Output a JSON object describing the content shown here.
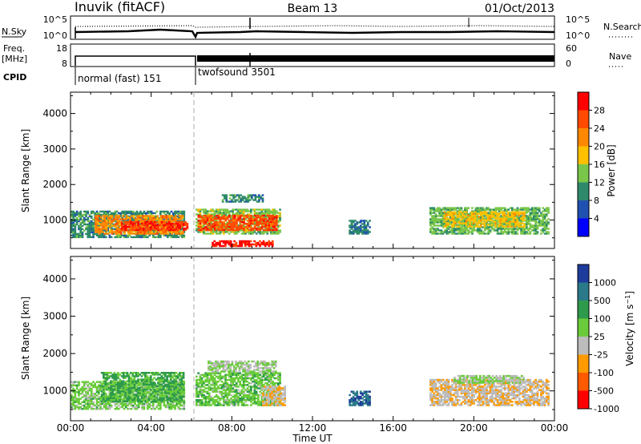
{
  "header": {
    "station": "Inuvik (fitACF)",
    "beam": "Beam 13",
    "date": "01/Oct/2013"
  },
  "status_panel": {
    "nsky_label": "N.Sky",
    "nsky_ticks": [
      "10^5",
      "10^0"
    ],
    "nsearch_label": "N.Search",
    "nsearch_ticks": [
      "10^5",
      "10^0"
    ],
    "freq_label_1": "Freq.",
    "freq_label_2": "[MHz]",
    "freq_ticks": [
      "18",
      "8"
    ],
    "nave_label": "Nave",
    "nave_ticks": [
      "60",
      "0"
    ],
    "cpid_label": "CPID",
    "modes": [
      {
        "name": "normal (fast) 151",
        "start_h": 0.0,
        "end_h": 6.0
      },
      {
        "name": "twofsound 3501",
        "start_h": 6.0,
        "end_h": 24.0
      }
    ]
  },
  "chart_data": [
    {
      "type": "heatmap",
      "title": "",
      "parameter": "Power",
      "colorbar_label": "Power [dB]",
      "colorbar_ticks": [
        "28",
        "24",
        "20",
        "16",
        "12",
        "8",
        "4"
      ],
      "colorbar_colors": [
        "#ff0000",
        "#ff4a00",
        "#ff8800",
        "#ffc000",
        "#7ac64a",
        "#2e8a6a",
        "#2050b0",
        "#0000ff"
      ],
      "colorbar_min": 0,
      "colorbar_max": 32,
      "ylabel": "Slant Range [km]",
      "yticks": [
        1000,
        2000,
        3000,
        4000
      ],
      "ylim": [
        200,
        4600
      ],
      "xlim": [
        0,
        24
      ],
      "regions": [
        {
          "x0": 0.0,
          "x1": 5.6,
          "y0": 500,
          "y1": 1250,
          "value": 10
        },
        {
          "x0": 1.2,
          "x1": 5.6,
          "y0": 600,
          "y1": 1100,
          "value": 22
        },
        {
          "x0": 2.5,
          "x1": 5.8,
          "y0": 700,
          "y1": 950,
          "value": 28
        },
        {
          "x0": 6.2,
          "x1": 10.4,
          "y0": 600,
          "y1": 1300,
          "value": 14
        },
        {
          "x0": 6.3,
          "x1": 10.2,
          "y0": 700,
          "y1": 1150,
          "value": 26
        },
        {
          "x0": 7.0,
          "x1": 10.0,
          "y0": 250,
          "y1": 420,
          "value": 29
        },
        {
          "x0": 7.5,
          "x1": 9.5,
          "y0": 1500,
          "y1": 1700,
          "value": 10
        },
        {
          "x0": 13.8,
          "x1": 14.8,
          "y0": 600,
          "y1": 1000,
          "value": 9
        },
        {
          "x0": 17.8,
          "x1": 23.7,
          "y0": 600,
          "y1": 1350,
          "value": 13
        },
        {
          "x0": 18.5,
          "x1": 22.5,
          "y0": 800,
          "y1": 1250,
          "value": 18
        }
      ]
    },
    {
      "type": "heatmap",
      "title": "",
      "parameter": "Velocity",
      "colorbar_label": "Velocity [m s^-1]",
      "colorbar_ticks": [
        "1000",
        "500",
        "100",
        "25",
        "-25",
        "-100",
        "-500",
        "-1000"
      ],
      "colorbar_colors": [
        "#1e3c9c",
        "#2a7a8a",
        "#2e9a4c",
        "#6acc3a",
        "#bcbcbc",
        "#ff9a00",
        "#ff5a00",
        "#ff0000"
      ],
      "colorbar_min": -1000,
      "colorbar_max": 1000,
      "ylabel": "Slant Range [km]",
      "yticks": [
        1000,
        2000,
        3000,
        4000
      ],
      "ylim": [
        200,
        4600
      ],
      "xlim": [
        0,
        24
      ],
      "xticks": [
        "00:00",
        "04:00",
        "08:00",
        "12:00",
        "16:00",
        "20:00",
        "00:00"
      ],
      "xlabel": "Time UT",
      "regions": [
        {
          "x0": 0.0,
          "x1": 5.6,
          "y0": 500,
          "y1": 1250,
          "value": 100
        },
        {
          "x0": 1.5,
          "x1": 5.6,
          "y0": 700,
          "y1": 1500,
          "value": 300
        },
        {
          "x0": 6.2,
          "x1": 10.4,
          "y0": 600,
          "y1": 1500,
          "value": 150
        },
        {
          "x0": 6.8,
          "x1": 10.2,
          "y0": 1500,
          "y1": 1800,
          "value": 0
        },
        {
          "x0": 9.5,
          "x1": 10.6,
          "y0": 600,
          "y1": 1100,
          "value": -200
        },
        {
          "x0": 13.8,
          "x1": 14.8,
          "y0": 600,
          "y1": 1000,
          "value": 700
        },
        {
          "x0": 17.8,
          "x1": 23.7,
          "y0": 600,
          "y1": 1300,
          "value": -200
        },
        {
          "x0": 19.0,
          "x1": 22.5,
          "y0": 1200,
          "y1": 1400,
          "value": 0
        }
      ]
    }
  ]
}
